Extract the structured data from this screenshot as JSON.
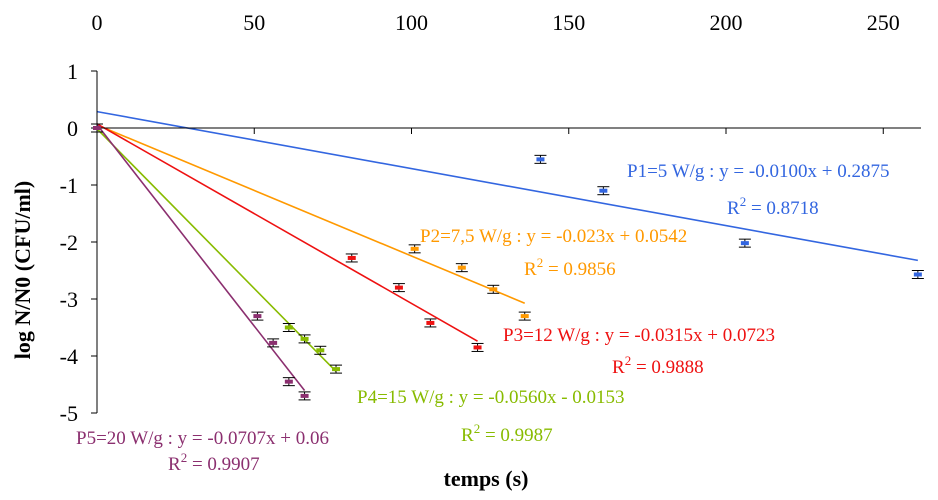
{
  "chart_data": {
    "type": "scatter",
    "xlabel": "temps (s)",
    "ylabel": "log N/N0 (CFU/ml)",
    "xlim": [
      0,
      262
    ],
    "ylim": [
      -5,
      1
    ],
    "xticks": [
      0,
      50,
      100,
      150,
      200,
      250
    ],
    "yticks": [
      1,
      0,
      -1,
      -2,
      -3,
      -4,
      -5
    ],
    "x_axis_position": "top",
    "grid": false,
    "series": [
      {
        "key": "p1",
        "color": "#3366e0",
        "points": [
          [
            0,
            0
          ],
          [
            141,
            -0.55
          ],
          [
            161,
            -1.1
          ],
          [
            206,
            -2.02
          ],
          [
            261,
            -2.57
          ]
        ],
        "fit": {
          "x": [
            0,
            261
          ],
          "y": [
            0.2875,
            -2.3225
          ]
        },
        "equation": "P1=5 W/g : y = -0.0100x + 0.2875",
        "r2_prefix": "R",
        "r2_sup": "2",
        "r2_value": " = 0.8718"
      },
      {
        "key": "p2",
        "color": "#ff9900",
        "points": [
          [
            0,
            0
          ],
          [
            101,
            -2.12
          ],
          [
            116,
            -2.45
          ],
          [
            126,
            -2.83
          ],
          [
            136,
            -3.3
          ]
        ],
        "fit": {
          "x": [
            0,
            136
          ],
          "y": [
            0.0542,
            -3.0738
          ]
        },
        "equation": "P2=7,5 W/g : y = -0.023x + 0.0542",
        "r2_prefix": "R",
        "r2_sup": "2",
        "r2_value": " = 0.9856"
      },
      {
        "key": "p3",
        "color": "#ee1111",
        "points": [
          [
            0,
            0
          ],
          [
            81,
            -2.28
          ],
          [
            96,
            -2.8
          ],
          [
            106,
            -3.42
          ],
          [
            121,
            -3.85
          ]
        ],
        "fit": {
          "x": [
            0,
            121
          ],
          "y": [
            0.0723,
            -3.7392
          ]
        },
        "equation": "P3=12 W/g : y = -0.0315x + 0.0723",
        "r2_prefix": "R",
        "r2_sup": "2",
        "r2_value": " = 0.9888"
      },
      {
        "key": "p4",
        "color": "#88bb00",
        "points": [
          [
            0,
            0
          ],
          [
            61,
            -3.5
          ],
          [
            66,
            -3.7
          ],
          [
            71,
            -3.9
          ],
          [
            76,
            -4.23
          ]
        ],
        "fit": {
          "x": [
            0,
            76
          ],
          "y": [
            -0.0153,
            -4.2713
          ]
        },
        "equation": "P4=15 W/g : y = -0.0560x - 0.0153",
        "r2_prefix": "R",
        "r2_sup": "2",
        "r2_value": " = 0.9987"
      },
      {
        "key": "p5",
        "color": "#8b2f6f",
        "points": [
          [
            0,
            0
          ],
          [
            51,
            -3.3
          ],
          [
            56,
            -3.77
          ],
          [
            61,
            -4.45
          ],
          [
            66,
            -4.7
          ]
        ],
        "fit": {
          "x": [
            0,
            66
          ],
          "y": [
            0.06,
            -4.6062
          ]
        },
        "equation": "P5=20 W/g : y = -0.0707x + 0.06",
        "r2_prefix": "R",
        "r2_sup": "2",
        "r2_value": " = 0.9907"
      }
    ]
  }
}
